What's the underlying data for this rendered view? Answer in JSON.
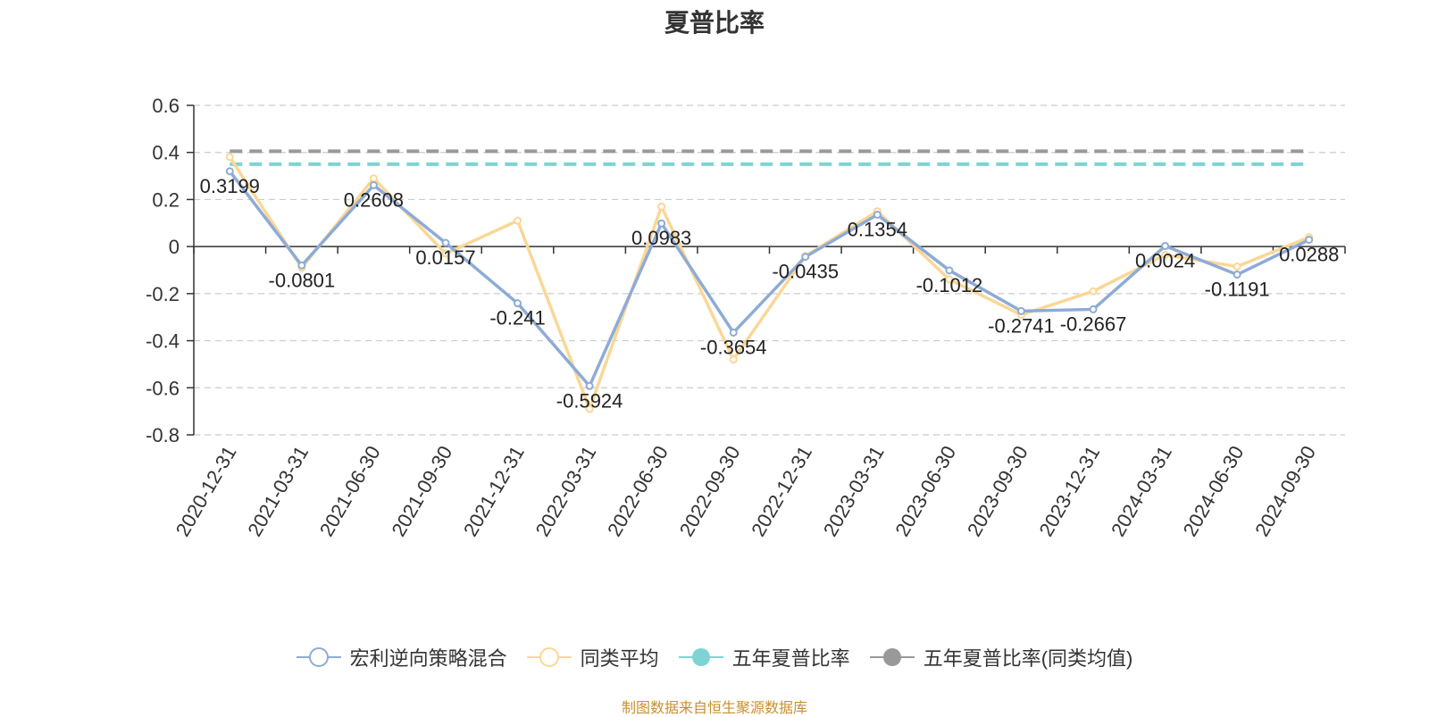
{
  "chart_data": {
    "type": "line",
    "title": "夏普比率",
    "categories": [
      "2020-12-31",
      "2021-03-31",
      "2021-06-30",
      "2021-09-30",
      "2021-12-31",
      "2022-03-31",
      "2022-06-30",
      "2022-09-30",
      "2022-12-31",
      "2023-03-31",
      "2023-06-30",
      "2023-09-30",
      "2023-12-31",
      "2024-03-31",
      "2024-06-30",
      "2024-09-30"
    ],
    "ylim": [
      -0.8,
      0.6
    ],
    "yticks": [
      0.6,
      0.4,
      0.2,
      0,
      -0.2,
      -0.4,
      -0.6,
      -0.8
    ],
    "ytick_labels": [
      "0.6",
      "0.4",
      "0.2",
      "0",
      "-0.2",
      "-0.4",
      "-0.6",
      "-0.8"
    ],
    "grid": true,
    "legend_position": "bottom",
    "series": [
      {
        "name": "宏利逆向策略混合",
        "color": "#8eabd6",
        "values": [
          0.3199,
          -0.0801,
          0.2608,
          0.0157,
          -0.241,
          -0.5924,
          0.0983,
          -0.3654,
          -0.0435,
          0.1354,
          -0.1012,
          -0.2741,
          -0.2667,
          0.0024,
          -0.1191,
          0.0288
        ],
        "labels": [
          "0.3199",
          "-0.0801",
          "0.2608",
          "0.0157",
          "-0.241",
          "-0.5924",
          "0.0983",
          "-0.3654",
          "-0.0435",
          "0.1354",
          "-0.1012",
          "-0.2741",
          "-0.2667",
          "0.0024",
          "-0.1191",
          "0.0288"
        ]
      },
      {
        "name": "同类平均",
        "color": "#fad797",
        "values": [
          0.38,
          -0.09,
          0.29,
          -0.03,
          0.11,
          -0.69,
          0.17,
          -0.48,
          -0.04,
          0.15,
          -0.14,
          -0.29,
          -0.19,
          -0.035,
          -0.085,
          0.04
        ]
      },
      {
        "name": "五年夏普比率",
        "color": "#7ed3d4",
        "value": 0.35
      },
      {
        "name": "五年夏普比率(同类均值)",
        "color": "#999999",
        "value": 0.405
      }
    ]
  },
  "footer": {
    "source": "制图数据来自恒生聚源数据库"
  }
}
